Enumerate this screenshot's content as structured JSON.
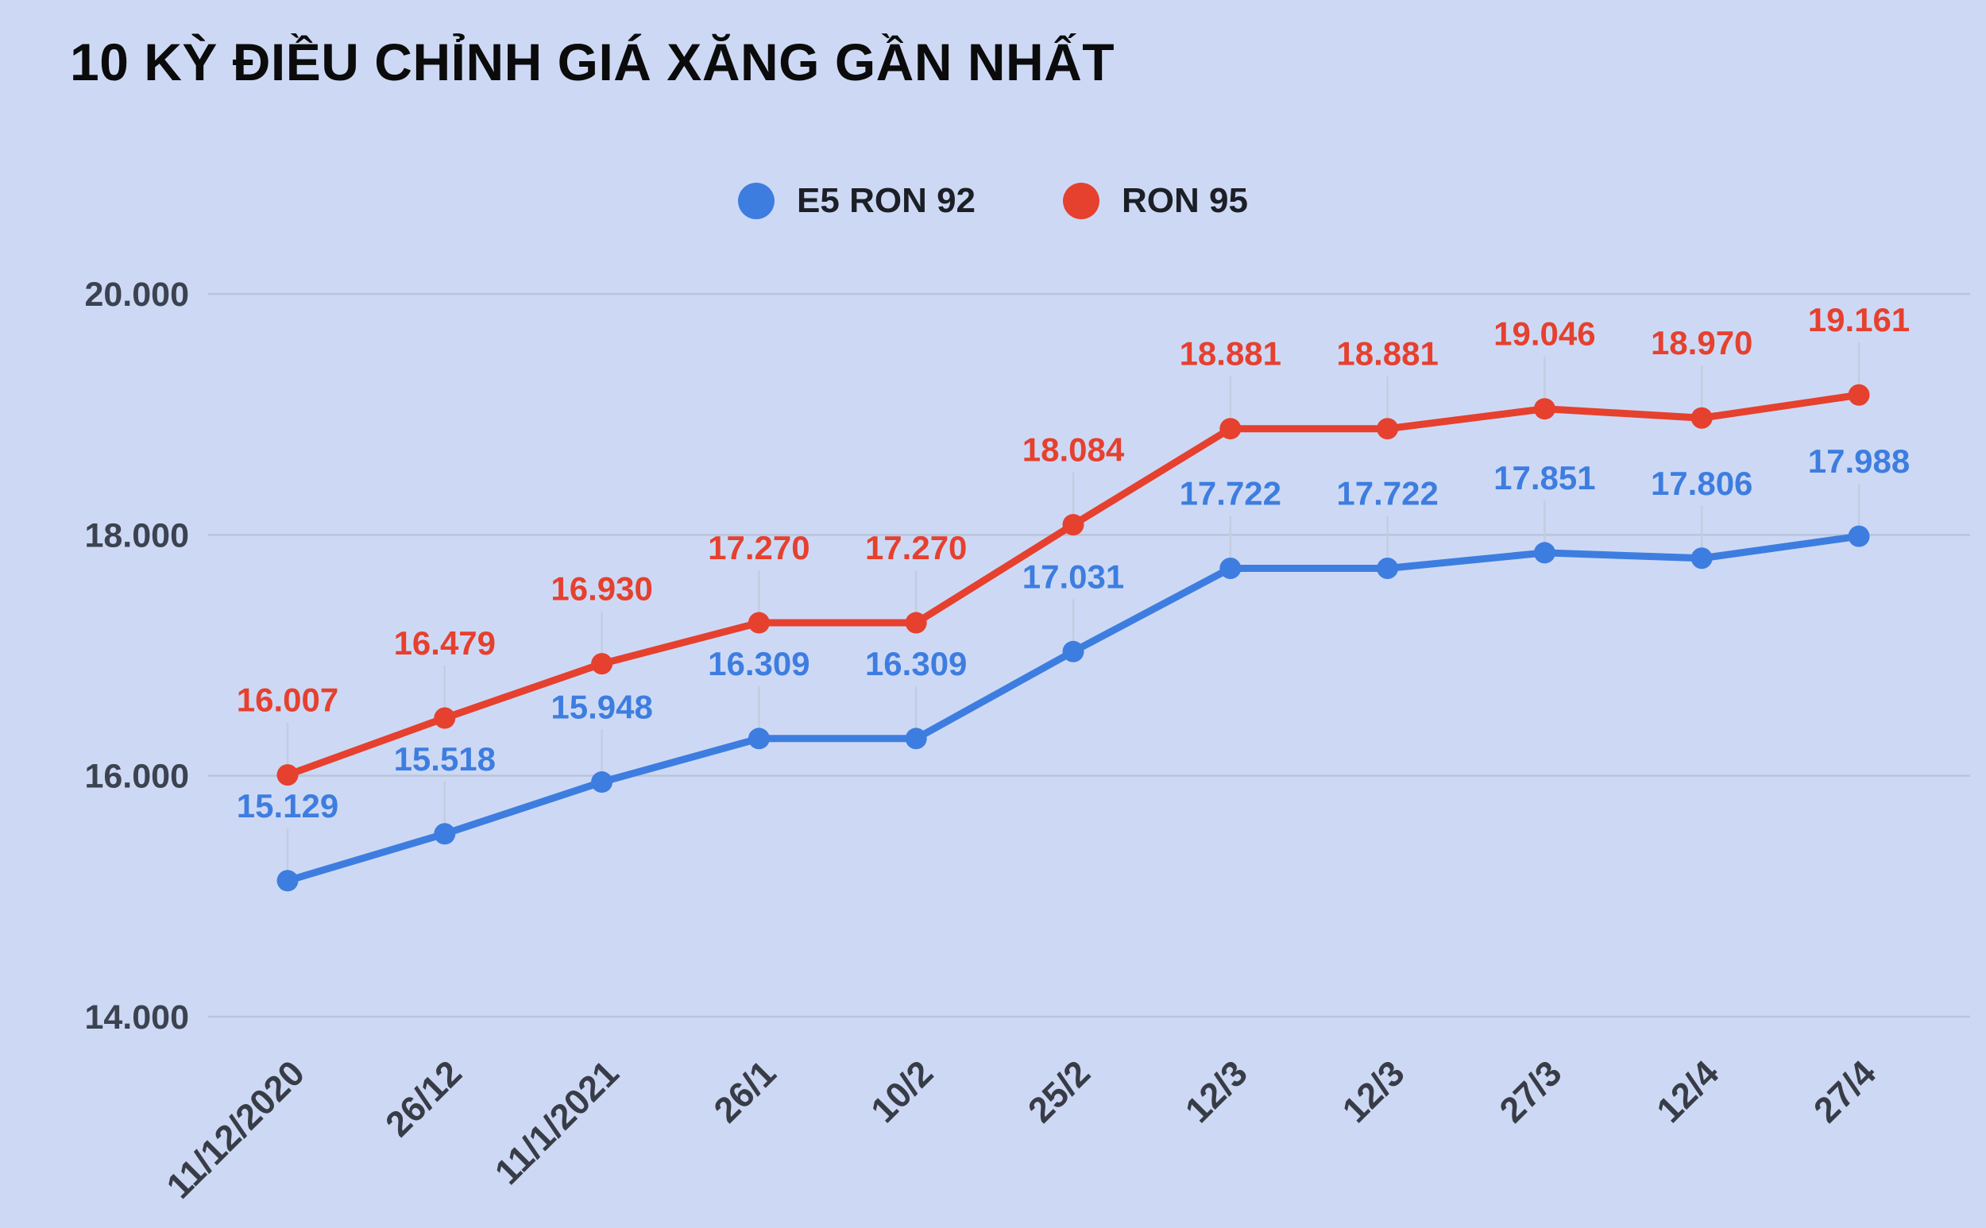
{
  "title": "10 KỲ ĐIỀU CHỈNH GIÁ XĂNG GẦN NHẤT",
  "colors": {
    "background": "#cdd9f4",
    "gridline": "#b9c3da",
    "leader_line": "#c3cde0",
    "blue_series": "#3e7de0",
    "red_series": "#e6402f"
  },
  "legend": [
    {
      "label": "E5 RON 92",
      "color": "#3e7de0"
    },
    {
      "label": "RON 95",
      "color": "#e6402f"
    }
  ],
  "chart_data": {
    "type": "line",
    "title": "10 KỲ ĐIỀU CHỈNH GIÁ XĂNG GẦN NHẤT",
    "categories": [
      "11/12/2020",
      "26/12",
      "11/1/2021",
      "26/1",
      "10/2",
      "25/2",
      "12/3",
      "12/3",
      "27/3",
      "12/4",
      "27/4"
    ],
    "series": [
      {
        "name": "E5 RON 92",
        "color": "#3e7de0",
        "values": [
          15129,
          15518,
          15948,
          16309,
          16309,
          17031,
          17722,
          17722,
          17851,
          17806,
          17988
        ],
        "labels": [
          "15.129",
          "15.518",
          "15.948",
          "16.309",
          "16.309",
          "17.031",
          "17.722",
          "17.722",
          "17.851",
          "17.806",
          "17.988"
        ]
      },
      {
        "name": "RON 95",
        "color": "#e6402f",
        "values": [
          16007,
          16479,
          16930,
          17270,
          17270,
          18084,
          18881,
          18881,
          19046,
          18970,
          19161
        ],
        "labels": [
          "16.007",
          "16.479",
          "16.930",
          "17.270",
          "17.270",
          "18.084",
          "18.881",
          "18.881",
          "19.046",
          "18.970",
          "19.161"
        ]
      }
    ],
    "y_ticks": [
      20000,
      18000,
      16000,
      14000
    ],
    "y_tick_labels": [
      "20.000",
      "18.000",
      "16.000",
      "14.000"
    ],
    "ylim": [
      14000,
      20000
    ],
    "xlabel": "",
    "ylabel": "",
    "grid": "horizontal",
    "legend_position": "top-center",
    "data_labels": true
  }
}
